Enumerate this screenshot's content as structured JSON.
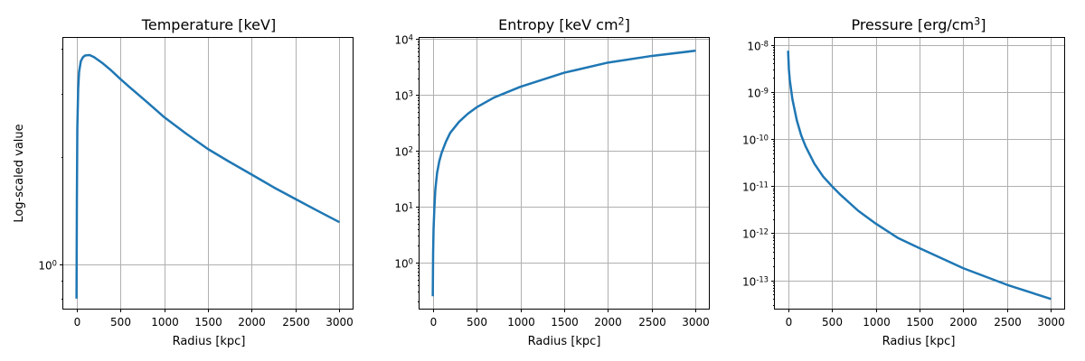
{
  "figure": {
    "background": "#ffffff",
    "line_color": "#1f77b4",
    "grid_color": "#b0b0b0"
  },
  "chart_data": [
    {
      "type": "line",
      "title": "Temperature [keV]",
      "xlabel": "Radius [kpc]",
      "ylabel": "Log-scaled value",
      "xscale": "linear",
      "yscale": "log",
      "xlim": [
        -150,
        3150
      ],
      "ylim": [
        0.75,
        4.3
      ],
      "xticks": [
        0,
        500,
        1000,
        1500,
        2000,
        2500,
        3000
      ],
      "yticks": [
        {
          "value": 1,
          "label": "10^0"
        }
      ],
      "grid": true,
      "series": [
        {
          "x": [
            1,
            5,
            10,
            20,
            30,
            50,
            75,
            100,
            150,
            200,
            300,
            400,
            500,
            600,
            800,
            1000,
            1250,
            1500,
            1750,
            2000,
            2250,
            2500,
            2750,
            3000
          ],
          "y": [
            0.8,
            1.5,
            2.4,
            3.1,
            3.45,
            3.7,
            3.8,
            3.84,
            3.85,
            3.8,
            3.65,
            3.48,
            3.3,
            3.14,
            2.85,
            2.58,
            2.32,
            2.1,
            1.93,
            1.78,
            1.64,
            1.52,
            1.41,
            1.31
          ]
        }
      ]
    },
    {
      "type": "line",
      "title": "Entropy [keV cm^2]",
      "xlabel": "Radius [kpc]",
      "ylabel": "",
      "xscale": "linear",
      "yscale": "log",
      "xlim": [
        -150,
        3150
      ],
      "ylim": [
        0.15,
        10500
      ],
      "xticks": [
        0,
        500,
        1000,
        1500,
        2000,
        2500,
        3000
      ],
      "yticks": [
        {
          "value": 1,
          "label": "10^0"
        },
        {
          "value": 10,
          "label": "10^1"
        },
        {
          "value": 100,
          "label": "10^2"
        },
        {
          "value": 1000,
          "label": "10^3"
        },
        {
          "value": 10000,
          "label": "10^4"
        }
      ],
      "grid": true,
      "series": [
        {
          "x": [
            1,
            5,
            10,
            20,
            30,
            50,
            75,
            100,
            150,
            200,
            300,
            400,
            500,
            700,
            1000,
            1500,
            2000,
            2500,
            3000
          ],
          "y": [
            0.25,
            1.5,
            4,
            10,
            20,
            40,
            65,
            90,
            145,
            210,
            330,
            460,
            600,
            900,
            1400,
            2500,
            3800,
            5000,
            6200
          ]
        }
      ]
    },
    {
      "type": "line",
      "title": "Pressure [erg/cm^3]",
      "xlabel": "Radius [kpc]",
      "ylabel": "",
      "xscale": "linear",
      "yscale": "log",
      "xlim": [
        -150,
        3150
      ],
      "ylim": [
        2.5e-14,
        1.4e-08
      ],
      "xticks": [
        0,
        500,
        1000,
        1500,
        2000,
        2500,
        3000
      ],
      "yticks": [
        {
          "value": 1e-08,
          "label": "10^-8"
        },
        {
          "value": 1e-09,
          "label": "10^-9"
        },
        {
          "value": 1e-10,
          "label": "10^-10"
        },
        {
          "value": 1e-11,
          "label": "10^-11"
        },
        {
          "value": 1e-12,
          "label": "10^-12"
        },
        {
          "value": 1e-13,
          "label": "10^-13"
        }
      ],
      "grid": true,
      "series": [
        {
          "x": [
            1,
            10,
            20,
            50,
            100,
            150,
            200,
            300,
            400,
            500,
            600,
            800,
            1000,
            1250,
            1500,
            2000,
            2500,
            3000
          ],
          "y": [
            7.5e-09,
            3e-09,
            1.8e-09,
            7e-10,
            2.5e-10,
            1.2e-10,
            7e-11,
            3e-11,
            1.6e-11,
            1e-11,
            6.5e-12,
            3e-12,
            1.6e-12,
            8e-13,
            4.8e-13,
            1.8e-13,
            8e-14,
            4e-14
          ]
        }
      ]
    }
  ]
}
